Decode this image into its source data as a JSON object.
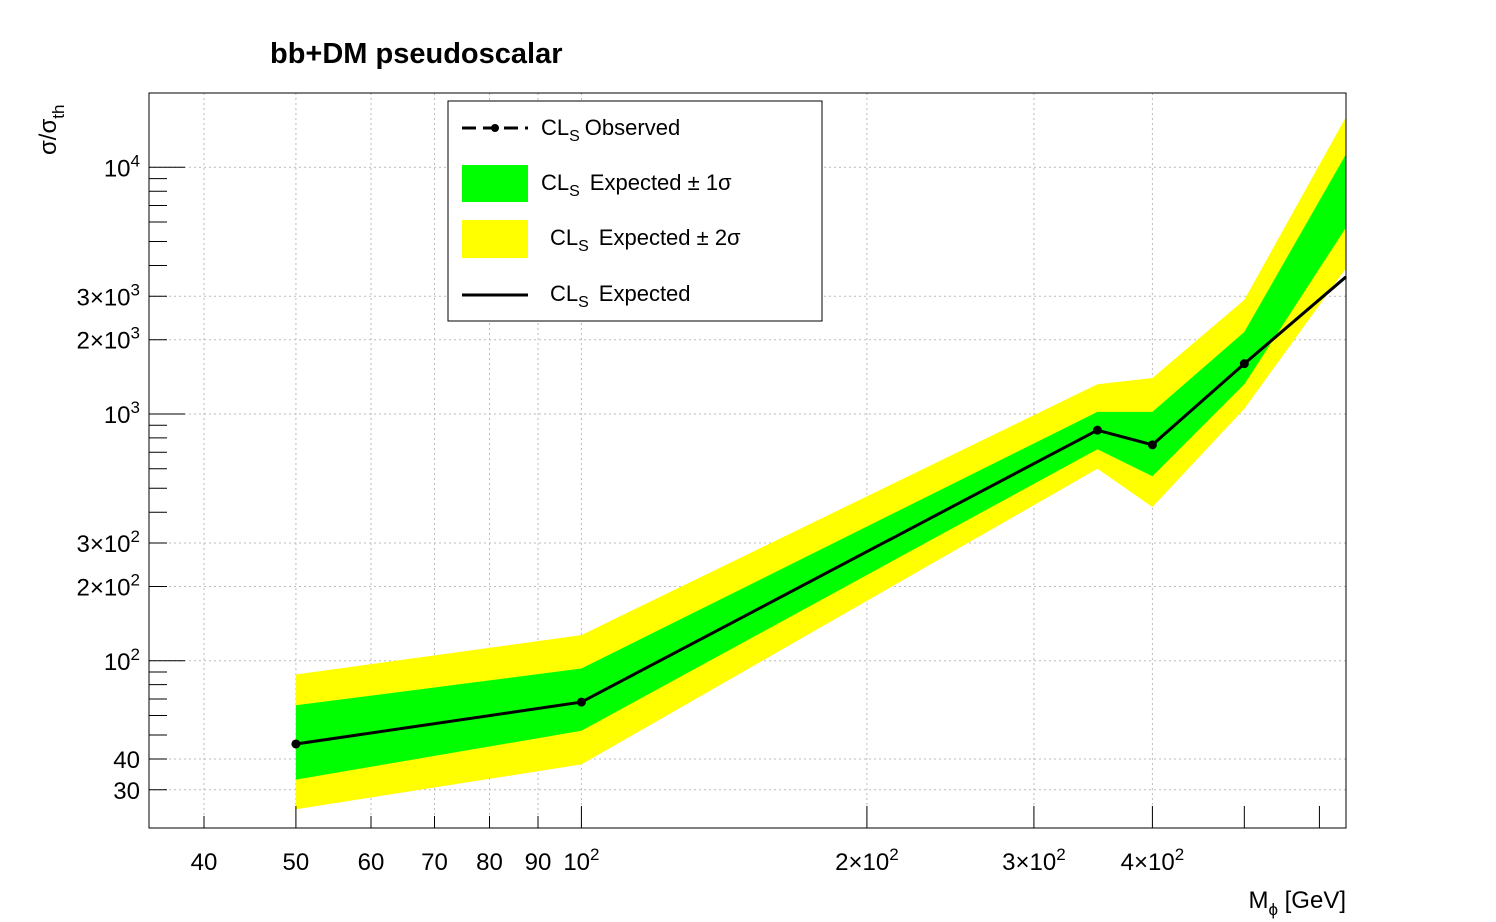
{
  "chart_data": {
    "type": "line",
    "title": "bb+DM pseudoscalar",
    "xlabel": {
      "main": "M",
      "sub": "ϕ",
      "unit": " [GeV]"
    },
    "ylabel": {
      "main": "σ/σ",
      "sub": "th"
    },
    "xscale": "log",
    "yscale": "log",
    "xlim": [
      35,
      640
    ],
    "ylim": [
      21,
      20000
    ],
    "grid": true,
    "x_ticks": [
      {
        "value": 40,
        "label": "40"
      },
      {
        "value": 50,
        "label": "50"
      },
      {
        "value": 60,
        "label": "60"
      },
      {
        "value": 70,
        "label": "70"
      },
      {
        "value": 80,
        "label": "80"
      },
      {
        "value": 90,
        "label": "90"
      },
      {
        "value": 100,
        "label": "10",
        "sup": "2"
      },
      {
        "value": 200,
        "label": "2×10",
        "sup": "2"
      },
      {
        "value": 300,
        "label": "3×10",
        "sup": "2"
      },
      {
        "value": 400,
        "label": "4×10",
        "sup": "2"
      }
    ],
    "y_ticks": [
      {
        "value": 30,
        "label": "30"
      },
      {
        "value": 40,
        "label": "40"
      },
      {
        "value": 100,
        "label": "10",
        "sup": "2"
      },
      {
        "value": 200,
        "label": "2×10",
        "sup": "2"
      },
      {
        "value": 300,
        "label": "3×10",
        "sup": "2"
      },
      {
        "value": 1000,
        "label": "10",
        "sup": "3"
      },
      {
        "value": 2000,
        "label": "2×10",
        "sup": "3"
      },
      {
        "value": 3000,
        "label": "3×10",
        "sup": "3"
      },
      {
        "value": 10000,
        "label": "10",
        "sup": "4"
      }
    ],
    "x": [
      50,
      100,
      350,
      400,
      500,
      640
    ],
    "series": [
      {
        "name": "CL_S Expected ± 2σ",
        "kind": "band",
        "color": "#ffff00",
        "low": [
          25,
          38,
          600,
          420,
          1050,
          3900
        ],
        "high": [
          88,
          127,
          1320,
          1400,
          2900,
          16000
        ]
      },
      {
        "name": "CL_S Expected ± 1σ",
        "kind": "band",
        "color": "#00ff00",
        "low": [
          33,
          52,
          720,
          560,
          1320,
          5700
        ],
        "high": [
          66,
          93,
          1020,
          1020,
          2150,
          11300
        ]
      },
      {
        "name": "CL_S Expected",
        "kind": "line",
        "color": "#000000",
        "values": [
          46,
          68,
          860,
          750,
          1600,
          3600
        ]
      }
    ],
    "legend": {
      "position": "top-center",
      "entries": [
        {
          "key": "observed",
          "text": "Observed",
          "prefix": "CL",
          "sub": "S",
          "style": "dashed-marker"
        },
        {
          "key": "exp1",
          "text": "Expected ± 1σ",
          "prefix": "CL",
          "sub": "S",
          "style": "box",
          "color": "#00ff00"
        },
        {
          "key": "exp2",
          "text": "Expected ± 2σ",
          "prefix": "CL",
          "sub": "S",
          "style": "box",
          "color": "#ffff00"
        },
        {
          "key": "exp",
          "text": "Expected",
          "prefix": "CL",
          "sub": "S",
          "style": "line"
        }
      ]
    }
  }
}
